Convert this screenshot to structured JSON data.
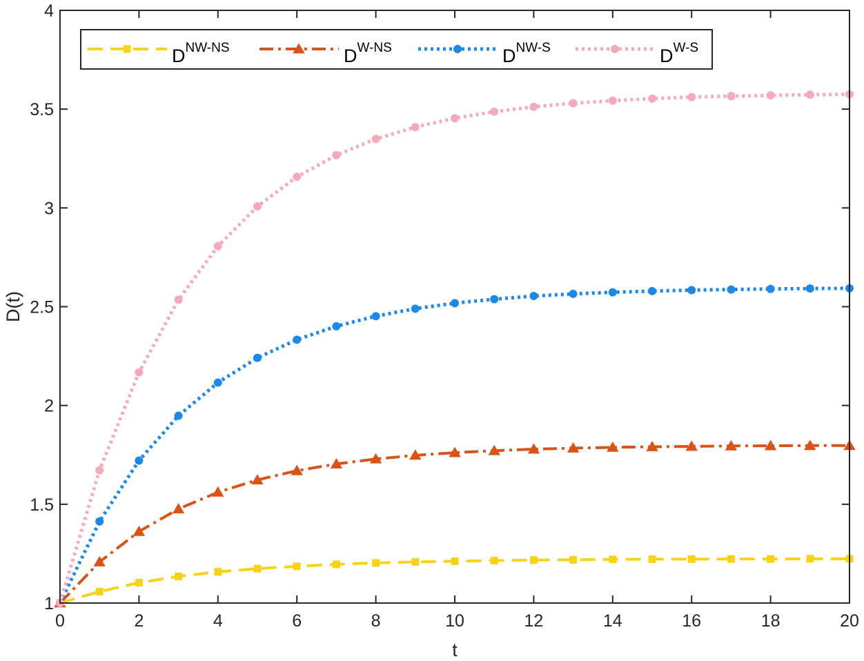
{
  "chart_data": {
    "type": "line",
    "title": "",
    "xlabel": "t",
    "ylabel": "D(t)",
    "xlim": [
      0,
      20
    ],
    "ylim": [
      1,
      4
    ],
    "grid": false,
    "legend_position": "top-left",
    "xticks": [
      "0",
      "2",
      "4",
      "6",
      "8",
      "10",
      "12",
      "14",
      "16",
      "18",
      "20"
    ],
    "yticks": [
      "1",
      "1.5",
      "2",
      "2.5",
      "3",
      "3.5",
      "4"
    ],
    "x": [
      0,
      1,
      2,
      3,
      4,
      5,
      6,
      7,
      8,
      9,
      10,
      11,
      12,
      13,
      14,
      15,
      16,
      17,
      18,
      19,
      20
    ],
    "series": [
      {
        "name": "D^{NW-NS}",
        "base": "D",
        "sup": "NW-NS",
        "color": "#f7d21a",
        "line_style": "dashed",
        "marker": "square",
        "values": [
          1.0,
          1.058,
          1.103,
          1.135,
          1.158,
          1.174,
          1.186,
          1.196,
          1.203,
          1.208,
          1.212,
          1.215,
          1.218,
          1.219,
          1.221,
          1.222,
          1.222,
          1.223,
          1.223,
          1.224,
          1.224
        ]
      },
      {
        "name": "D^{W-NS}",
        "base": "D",
        "sup": "W-NS",
        "color": "#d95319",
        "line_style": "dashdot",
        "marker": "triangle",
        "values": [
          1.0,
          1.208,
          1.362,
          1.476,
          1.561,
          1.623,
          1.67,
          1.704,
          1.729,
          1.748,
          1.761,
          1.771,
          1.779,
          1.784,
          1.788,
          1.791,
          1.793,
          1.795,
          1.796,
          1.797,
          1.797
        ]
      },
      {
        "name": "D^{NW-S}",
        "base": "D",
        "sup": "NW-S",
        "color": "#1e88e5",
        "line_style": "dotted",
        "marker": "circle",
        "values": [
          1.0,
          1.413,
          1.721,
          1.948,
          2.116,
          2.241,
          2.333,
          2.401,
          2.452,
          2.49,
          2.518,
          2.538,
          2.554,
          2.565,
          2.573,
          2.579,
          2.584,
          2.587,
          2.59,
          2.592,
          2.593
        ]
      },
      {
        "name": "D^{W-S}",
        "base": "D",
        "sup": "W-S",
        "color": "#f4aab8",
        "line_style": "dotted",
        "marker": "circle",
        "values": [
          1.0,
          1.672,
          2.168,
          2.535,
          2.806,
          3.008,
          3.157,
          3.267,
          3.349,
          3.409,
          3.454,
          3.487,
          3.512,
          3.53,
          3.543,
          3.553,
          3.561,
          3.566,
          3.57,
          3.573,
          3.575
        ]
      }
    ]
  }
}
